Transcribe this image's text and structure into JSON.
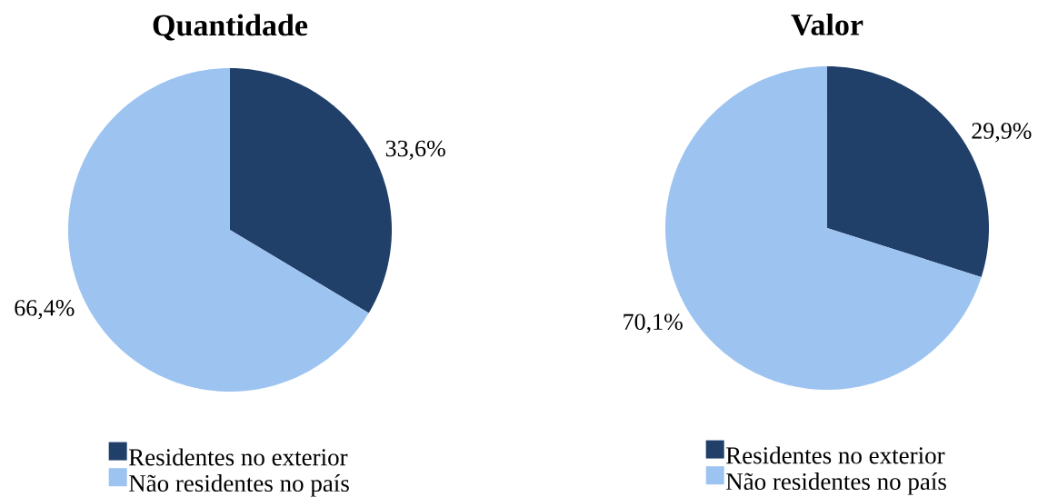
{
  "chart_data": [
    {
      "type": "pie",
      "title": "Quantidade",
      "categories": [
        "Residentes no exterior",
        "Não residentes no país"
      ],
      "values": [
        33.6,
        66.4
      ],
      "colors": [
        "#203f69",
        "#9dc3f1"
      ],
      "value_labels": [
        "33,6%",
        "66,4%"
      ],
      "legend": "bottom"
    },
    {
      "type": "pie",
      "title": "Valor",
      "categories": [
        "Residentes no exterior",
        "Não residentes no país"
      ],
      "values": [
        29.9,
        70.1
      ],
      "colors": [
        "#203f69",
        "#9dc3f1"
      ],
      "value_labels": [
        "29,9%",
        "70,1%"
      ],
      "legend": "bottom"
    }
  ]
}
